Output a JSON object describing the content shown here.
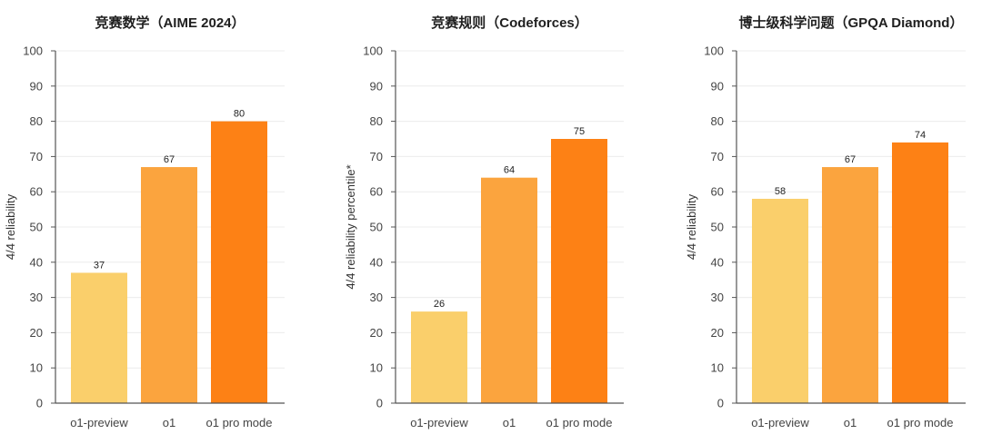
{
  "chart_data": [
    {
      "type": "bar",
      "title": "竞赛数学（AIME 2024）",
      "ylabel": "4/4 reliability",
      "xlabel": "",
      "categories": [
        "o1-preview",
        "o1",
        "o1 pro mode"
      ],
      "values": [
        37,
        67,
        80
      ],
      "colors": [
        "#FACF6B",
        "#FBA43E",
        "#FD8115"
      ],
      "ylim": [
        0,
        100
      ],
      "yticks": [
        0,
        10,
        20,
        30,
        40,
        50,
        60,
        70,
        80,
        90,
        100
      ],
      "grid": true
    },
    {
      "type": "bar",
      "title": "竞赛规则（Codeforces）",
      "ylabel": "4/4 reliability percentile*",
      "xlabel": "",
      "categories": [
        "o1-preview",
        "o1",
        "o1 pro mode"
      ],
      "values": [
        26,
        64,
        75
      ],
      "colors": [
        "#FACF6B",
        "#FBA43E",
        "#FD8115"
      ],
      "ylim": [
        0,
        100
      ],
      "yticks": [
        0,
        10,
        20,
        30,
        40,
        50,
        60,
        70,
        80,
        90,
        100
      ],
      "grid": true
    },
    {
      "type": "bar",
      "title": "博士级科学问题（GPQA Diamond）",
      "ylabel": "4/4 reliability",
      "xlabel": "",
      "categories": [
        "o1-preview",
        "o1",
        "o1 pro mode"
      ],
      "values": [
        58,
        67,
        74
      ],
      "colors": [
        "#FACF6B",
        "#FBA43E",
        "#FD8115"
      ],
      "ylim": [
        0,
        100
      ],
      "yticks": [
        0,
        10,
        20,
        30,
        40,
        50,
        60,
        70,
        80,
        90,
        100
      ],
      "grid": true
    }
  ]
}
